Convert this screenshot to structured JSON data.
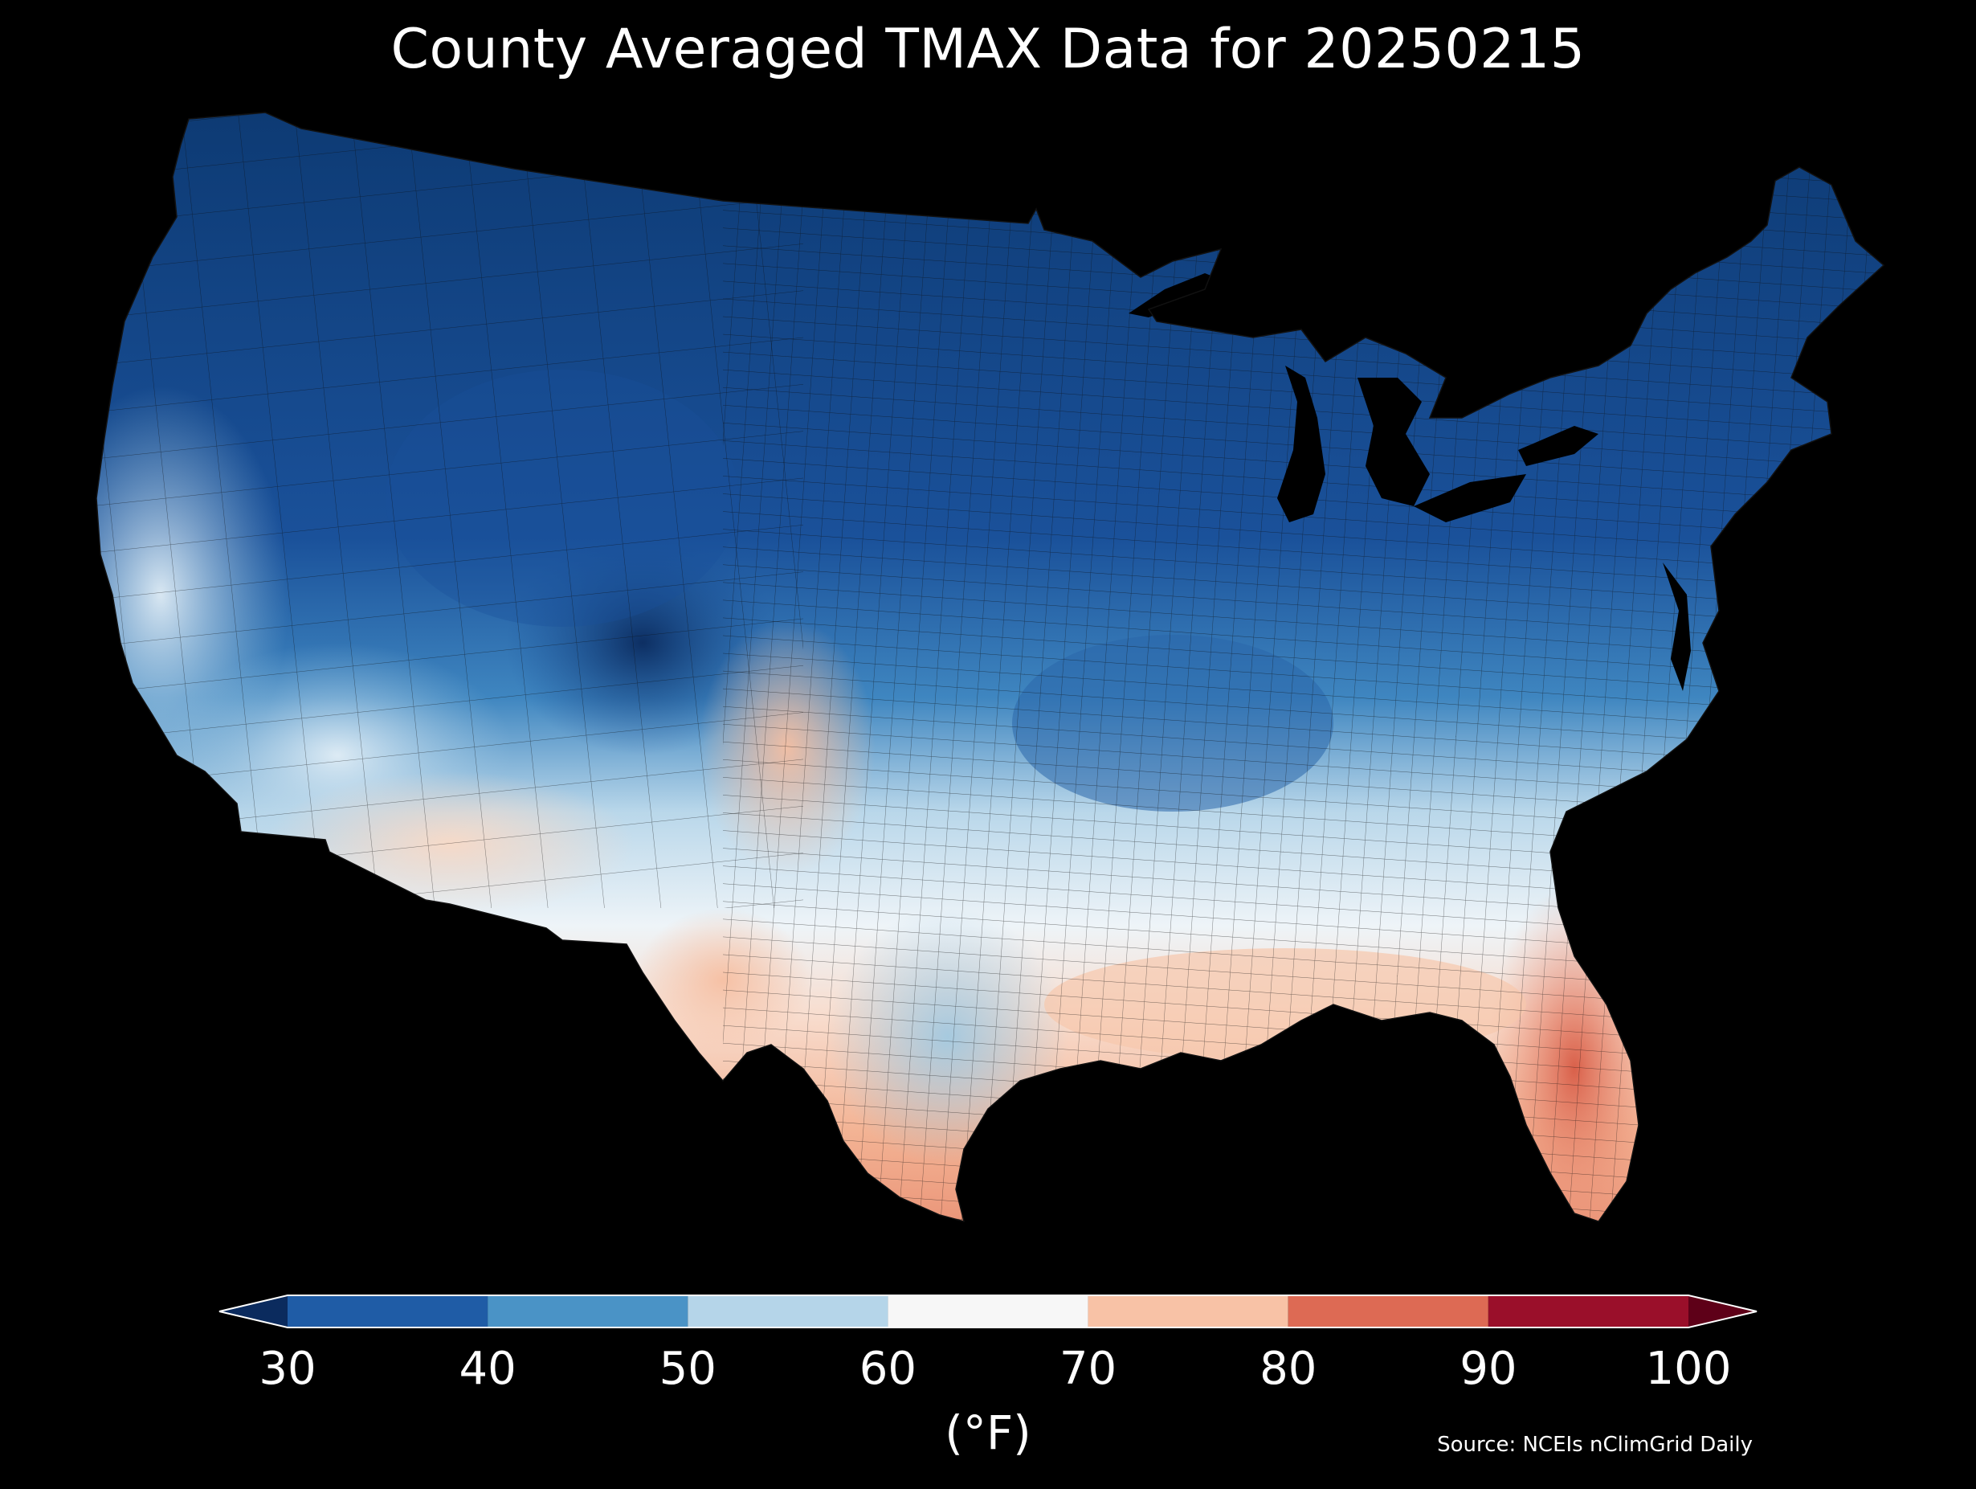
{
  "title": "County Averaged TMAX Data for 20250215",
  "map": {
    "region": "Contiguous United States",
    "features": "counties",
    "background": "#000000",
    "boundary_color": "#1a1a1a",
    "variable": "TMAX"
  },
  "colorbar": {
    "unit_label": "(°F)",
    "ticks": [
      "30",
      "40",
      "50",
      "60",
      "70",
      "80",
      "90",
      "100"
    ],
    "bins": [
      {
        "min": 30,
        "max": 40,
        "color": "#1f5ca6"
      },
      {
        "min": 40,
        "max": 50,
        "color": "#4a93c6"
      },
      {
        "min": 50,
        "max": 60,
        "color": "#b5d5e9"
      },
      {
        "min": 60,
        "max": 70,
        "color": "#f7f7f7"
      },
      {
        "min": 70,
        "max": 80,
        "color": "#f8c2a6"
      },
      {
        "min": 80,
        "max": 90,
        "color": "#dd6a54"
      },
      {
        "min": 90,
        "max": 100,
        "color": "#9a0f2a"
      }
    ],
    "under_color": "#0b2b5e",
    "over_color": "#5e0018",
    "extend": "both"
  },
  "source": "Source: NCEIs nClimGrid Daily"
}
